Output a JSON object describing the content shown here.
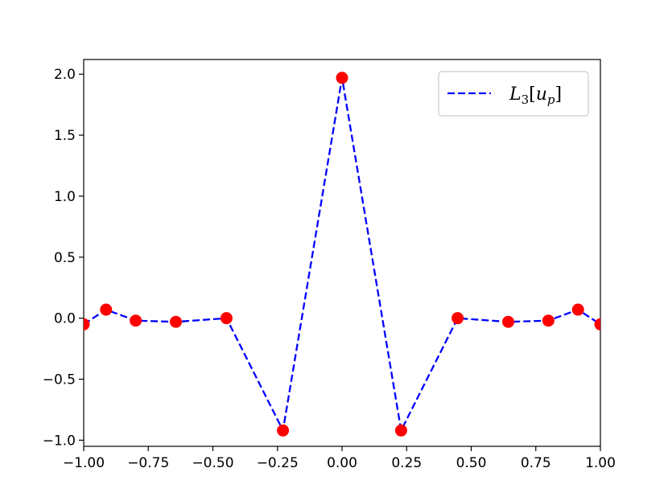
{
  "chart_data": {
    "type": "line",
    "x": [
      -1.0,
      -0.9135,
      -0.7986,
      -0.6433,
      -0.4473,
      -0.2287,
      0.0,
      0.2287,
      0.4473,
      0.6433,
      0.7986,
      0.9135,
      1.0
    ],
    "series": [
      {
        "name": "L₃[uₚ]",
        "values": [
          -0.05,
          0.07,
          -0.02,
          -0.03,
          0.0,
          -0.92,
          1.97,
          -0.92,
          0.0,
          -0.03,
          -0.02,
          0.07,
          -0.05
        ],
        "line_color": "#0000ff",
        "line_style": "dashed",
        "marker_color": "#ff0000"
      }
    ],
    "xlim": [
      -1.0,
      1.0
    ],
    "ylim": [
      -1.05,
      2.12
    ],
    "x_ticks": [
      "−1.00",
      "−0.75",
      "−0.50",
      "−0.25",
      "0.00",
      "0.25",
      "0.50",
      "0.75",
      "1.00"
    ],
    "y_ticks": [
      "−1.0",
      "−0.5",
      "0.0",
      "0.5",
      "1.0",
      "1.5",
      "2.0"
    ],
    "legend_position": "top-right",
    "grid": false
  },
  "legend": {
    "label_base": "L",
    "label_sub": "3",
    "label_open": "[",
    "label_var": "u",
    "label_var_sub": "p",
    "label_close": "]"
  }
}
